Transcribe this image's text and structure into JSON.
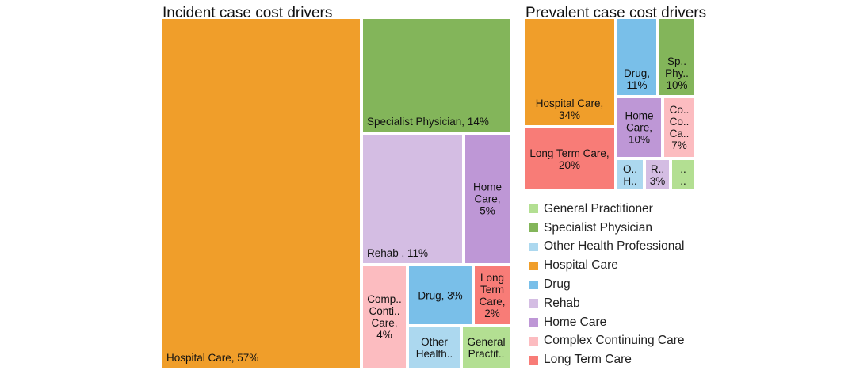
{
  "colors": {
    "General Practitioner": "#b3df92",
    "Specialist Physician": "#83b55a",
    "Other Health Professional": "#acd8ef",
    "Hospital Care": "#f09e2a",
    "Drug": "#79bfe9",
    "Rehab": "#d4bde3",
    "Home Care": "#be97d6",
    "Complex Continuing Care": "#fcbcc0",
    "Long Term Care": "#f87c77"
  },
  "legend": {
    "items": [
      {
        "label": "General Practitioner",
        "category": "General Practitioner"
      },
      {
        "label": "Specialist Physician",
        "category": "Specialist Physician"
      },
      {
        "label": "Other Health Professional",
        "category": "Other Health Professional"
      },
      {
        "label": "Hospital Care",
        "category": "Hospital Care"
      },
      {
        "label": "Drug",
        "category": "Drug"
      },
      {
        "label": "Rehab",
        "category": "Rehab"
      },
      {
        "label": "Home Care",
        "category": "Home Care"
      },
      {
        "label": "Complex Continuing Care",
        "category": "Complex Continuing Care"
      },
      {
        "label": "Long Term Care",
        "category": "Long Term Care"
      }
    ]
  },
  "chart_data": [
    {
      "type": "treemap",
      "title": "Incident case cost drivers",
      "slices": [
        {
          "category": "Hospital Care",
          "value": 57,
          "label": "Hospital Care, 57%"
        },
        {
          "category": "Specialist Physician",
          "value": 14,
          "label": "Specialist Physician, 14%"
        },
        {
          "category": "Rehab",
          "value": 11,
          "label": "Rehab , 11%"
        },
        {
          "category": "Home Care",
          "value": 5,
          "label": "Home\nCare,\n5%"
        },
        {
          "category": "Complex Continuing Care",
          "value": 4,
          "label": "Comp..\nConti..\nCare,\n4%"
        },
        {
          "category": "Drug",
          "value": 3,
          "label": "Drug, 3%"
        },
        {
          "category": "Long Term Care",
          "value": 2,
          "label": "Long\nTerm\nCare,\n2%"
        },
        {
          "category": "Other Health Professional",
          "value": 2,
          "label": "Other\nHealth.."
        },
        {
          "category": "General Practitioner",
          "value": 2,
          "label": "General\nPractit.."
        }
      ]
    },
    {
      "type": "treemap",
      "title": "Prevalent case cost drivers",
      "slices": [
        {
          "category": "Hospital Care",
          "value": 34,
          "label": "Hospital Care,\n34%"
        },
        {
          "category": "Long Term Care",
          "value": 20,
          "label": "Long Term Care,\n20%"
        },
        {
          "category": "Drug",
          "value": 11,
          "label": "Drug,\n11%"
        },
        {
          "category": "Specialist Physician",
          "value": 10,
          "label": "Sp..\nPhy..\n10%"
        },
        {
          "category": "Home Care",
          "value": 10,
          "label": "Home\nCare,\n10%"
        },
        {
          "category": "Complex Continuing Care",
          "value": 7,
          "label": "Co..\nCo..\nCa..\n7%"
        },
        {
          "category": "Other Health Professional",
          "value": 3,
          "label": "O..\nH.."
        },
        {
          "category": "Rehab",
          "value": 3,
          "label": "R..\n3%"
        },
        {
          "category": "General Practitioner",
          "value": 2,
          "label": "..\n.."
        }
      ]
    }
  ]
}
